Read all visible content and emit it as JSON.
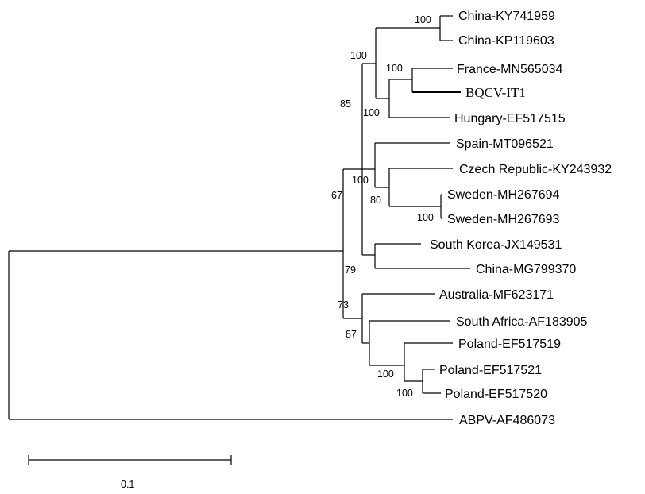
{
  "leaves": {
    "china_ky741959": "China-KY741959",
    "china_kp119603": "China-KP119603",
    "france_mn565034": "France-MN565034",
    "bqcv_it1": "BQCV-IT1",
    "hungary_ef517515": "Hungary-EF517515",
    "spain_mt096521": "Spain-MT096521",
    "czech_ky243932": "Czech Republic-KY243932",
    "sweden_mh267694": "Sweden-MH267694",
    "sweden_mh267693": "Sweden-MH267693",
    "south_korea_jx149531": "South Korea-JX149531",
    "china_mg799370": "China-MG799370",
    "australia_mf623171": "Australia-MF623171",
    "south_africa_af183905": "South Africa-AF183905",
    "poland_ef517519": "Poland-EF517519",
    "poland_ef517521": "Poland-EF517521",
    "poland_ef517520": "Poland-EF517520",
    "abpv_af486073": "ABPV-AF486073"
  },
  "bootstrap": {
    "china_pair": "100",
    "france_bqcv": "100",
    "china_france_hungary": "100",
    "france_hungary": "100",
    "group_top": "85",
    "root_inner": "67",
    "spain_clade": "100",
    "czech_sweden": "80",
    "sweden_pair": "100",
    "korea_china": "79",
    "lower_group": "73",
    "sa_poland": "87",
    "poland_three": "100",
    "poland_pair": "100"
  },
  "scale_bar": {
    "label": "0.1"
  }
}
